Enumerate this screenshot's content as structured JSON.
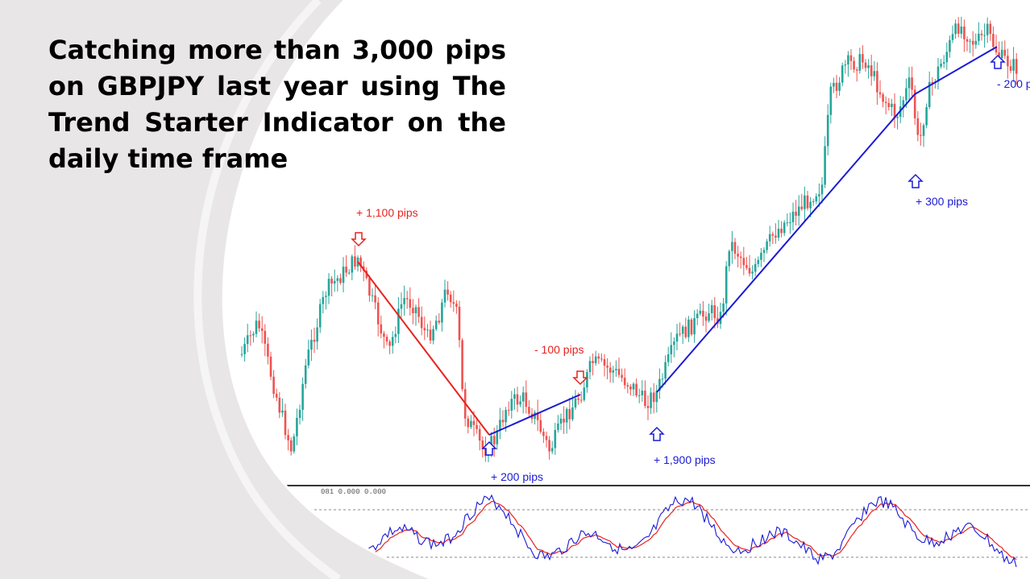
{
  "headline": "Catching more than 3,000 pips on GBPJPY last year using The Trend Starter Indicator on the daily time frame",
  "annotations": {
    "signal_sell_1": "+ 1,100 pips",
    "signal_sell_2": "- 100 pips",
    "signal_buy_1": "+ 200 pips",
    "signal_buy_2": "+ 1,900 pips",
    "signal_buy_3": "+ 300 pips",
    "signal_buy_4": "- 200 p"
  },
  "indicator_header": "081 0.000 0.000",
  "colors": {
    "background_panel": "#e8e6e7",
    "bull_candle": "#26a69a",
    "bear_candle": "#ef5350",
    "sell_color": "#e8231f",
    "buy_color": "#1a1ad6",
    "oscillator_main": "#1a1ad6",
    "oscillator_signal": "#e8231f"
  },
  "chart_data": {
    "type": "candlestick",
    "symbol": "GBPJPY",
    "timeframe": "daily",
    "signals": [
      {
        "direction": "sell",
        "result": "+ 1,100 pips"
      },
      {
        "direction": "buy",
        "result": "+ 200 pips"
      },
      {
        "direction": "sell",
        "result": "- 100 pips"
      },
      {
        "direction": "buy",
        "result": "+ 1,900 pips"
      },
      {
        "direction": "buy",
        "result": "+ 300 pips"
      },
      {
        "direction": "buy",
        "result": "- 200 p"
      }
    ],
    "lower_panel": {
      "type": "oscillator",
      "lines": 2,
      "levels_dashed": 2
    }
  }
}
